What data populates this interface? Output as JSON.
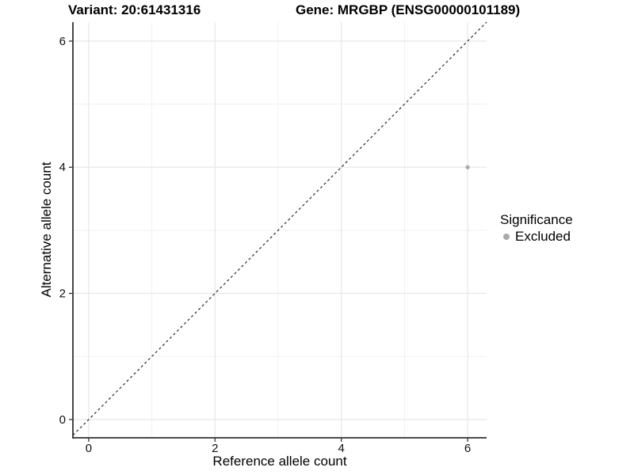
{
  "header": {
    "variant_title": "Variant: 20:61431316",
    "gene_title": "Gene: MRGBP (ENSG00000101189)"
  },
  "legend": {
    "title": "Significance",
    "items": [
      {
        "label": "Excluded",
        "color": "#aaaaaa",
        "marker": "circle"
      }
    ]
  },
  "colors": {
    "grid_major": "#e5e5e5",
    "grid_minor": "#efefef",
    "axis_line": "#333333",
    "tick_mark": "#333333",
    "tick_label": "#111111",
    "reference_line": "#1a1a1a",
    "point": "#aaaaaa",
    "background": "#ffffff"
  },
  "chart_data": {
    "type": "scatter",
    "title": "Variant: 20:61431316 / Gene: MRGBP (ENSG00000101189)",
    "xlabel": "Reference allele count",
    "ylabel": "Alternative allele count",
    "xlim": [
      -0.25,
      6.3
    ],
    "ylim": [
      -0.29,
      6.3
    ],
    "x_ticks": [
      0,
      2,
      4,
      6
    ],
    "y_ticks": [
      0,
      2,
      4,
      6
    ],
    "x_minor_ticks": [
      1,
      3,
      5
    ],
    "y_minor_ticks": [
      1,
      3,
      5
    ],
    "grid": true,
    "legend_position": "right",
    "reference_line": {
      "type": "identity",
      "slope": 1,
      "intercept": 0,
      "style": "dashed"
    },
    "series": [
      {
        "name": "Excluded",
        "color": "#aaaaaa",
        "points": [
          {
            "x": 6,
            "y": 4
          }
        ]
      }
    ]
  }
}
